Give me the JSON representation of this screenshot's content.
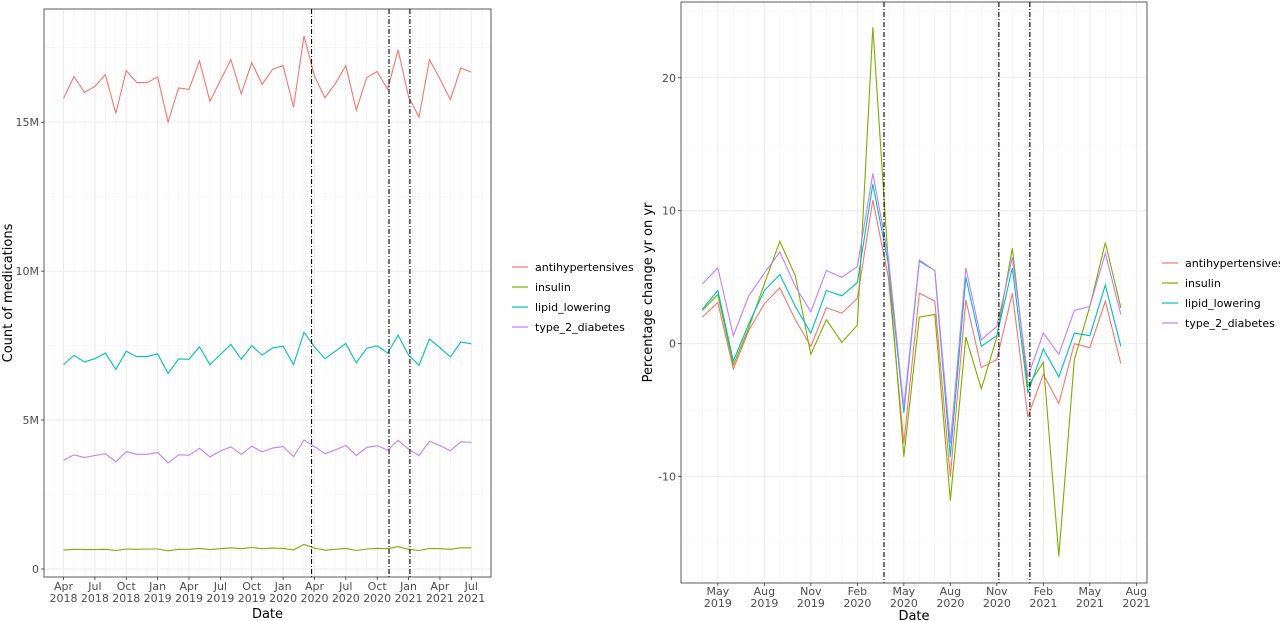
{
  "chart_data": [
    {
      "type": "line",
      "xlabel": "Date",
      "ylabel": "Count of medications",
      "x_type": "date",
      "xlim": [
        "2018-02-05",
        "2021-08-28"
      ],
      "ylim": [
        -0.27,
        18.8
      ],
      "y_unit": "millions",
      "grid": true,
      "legend_position": "right",
      "x_ticks": [
        {
          "date": "2018-04-01",
          "label": [
            "Apr",
            "2018"
          ]
        },
        {
          "date": "2018-07-01",
          "label": [
            "Jul",
            "2018"
          ]
        },
        {
          "date": "2018-10-01",
          "label": [
            "Oct",
            "2018"
          ]
        },
        {
          "date": "2019-01-01",
          "label": [
            "Jan",
            "2019"
          ]
        },
        {
          "date": "2019-04-01",
          "label": [
            "Apr",
            "2019"
          ]
        },
        {
          "date": "2019-07-01",
          "label": [
            "Jul",
            "2019"
          ]
        },
        {
          "date": "2019-10-01",
          "label": [
            "Oct",
            "2019"
          ]
        },
        {
          "date": "2020-01-01",
          "label": [
            "Jan",
            "2020"
          ]
        },
        {
          "date": "2020-04-01",
          "label": [
            "Apr",
            "2020"
          ]
        },
        {
          "date": "2020-07-01",
          "label": [
            "Jul",
            "2020"
          ]
        },
        {
          "date": "2020-10-01",
          "label": [
            "Oct",
            "2020"
          ]
        },
        {
          "date": "2021-01-01",
          "label": [
            "Jan",
            "2021"
          ]
        },
        {
          "date": "2021-04-01",
          "label": [
            "Apr",
            "2021"
          ]
        },
        {
          "date": "2021-07-01",
          "label": [
            "Jul",
            "2021"
          ]
        }
      ],
      "y_ticks": [
        {
          "value": 0,
          "label": "0"
        },
        {
          "value": 5,
          "label": "5M"
        },
        {
          "value": 10,
          "label": "10M"
        },
        {
          "value": 15,
          "label": "15M"
        }
      ],
      "vlines": [
        "2020-03-23",
        "2020-11-05",
        "2021-01-05"
      ],
      "x_start": "2018-04",
      "series": [
        {
          "name": "antihypertensives",
          "color": "#F8766D",
          "values": [
            15.8,
            16.53,
            16.0,
            16.2,
            16.6,
            15.3,
            16.73,
            16.33,
            16.33,
            16.52,
            15.0,
            16.15,
            16.1,
            17.06,
            15.7,
            16.4,
            17.1,
            15.95,
            17.0,
            16.27,
            16.78,
            16.9,
            15.5,
            17.9,
            16.55,
            15.82,
            16.3,
            16.9,
            15.4,
            16.5,
            16.7,
            16.1,
            17.43,
            15.85,
            15.17,
            17.1,
            16.45,
            15.76,
            16.82,
            16.68
          ]
        },
        {
          "name": "insulin",
          "color": "#7CAE00",
          "values": [
            0.63,
            0.66,
            0.65,
            0.65,
            0.66,
            0.62,
            0.67,
            0.66,
            0.67,
            0.67,
            0.61,
            0.66,
            0.66,
            0.69,
            0.65,
            0.68,
            0.71,
            0.68,
            0.72,
            0.68,
            0.7,
            0.69,
            0.64,
            0.82,
            0.7,
            0.63,
            0.66,
            0.69,
            0.62,
            0.67,
            0.69,
            0.68,
            0.75,
            0.66,
            0.62,
            0.69,
            0.68,
            0.66,
            0.71,
            0.71
          ]
        },
        {
          "name": "lipid_lowering",
          "color": "#00BFC4",
          "values": [
            6.86,
            7.17,
            6.95,
            7.06,
            7.25,
            6.7,
            7.31,
            7.13,
            7.13,
            7.22,
            6.56,
            7.05,
            7.04,
            7.46,
            6.86,
            7.2,
            7.54,
            7.04,
            7.5,
            7.18,
            7.42,
            7.48,
            6.86,
            7.94,
            7.46,
            7.06,
            7.31,
            7.57,
            6.92,
            7.41,
            7.49,
            7.25,
            7.85,
            7.18,
            6.84,
            7.72,
            7.43,
            7.12,
            7.62,
            7.56
          ]
        },
        {
          "name": "type_2_diabetes",
          "color": "#C77CFF",
          "values": [
            3.65,
            3.83,
            3.74,
            3.81,
            3.87,
            3.6,
            3.94,
            3.85,
            3.85,
            3.91,
            3.56,
            3.83,
            3.82,
            4.05,
            3.76,
            3.96,
            4.1,
            3.85,
            4.12,
            3.93,
            4.06,
            4.11,
            3.77,
            4.33,
            4.11,
            3.87,
            4.0,
            4.15,
            3.81,
            4.08,
            4.14,
            3.99,
            4.32,
            4.02,
            3.81,
            4.29,
            4.14,
            3.97,
            4.27,
            4.25
          ]
        }
      ]
    },
    {
      "type": "line",
      "xlabel": "Date",
      "ylabel": "Percentage change yr on yr",
      "x_type": "date",
      "xlim": [
        "2019-02-20",
        "2021-08-22"
      ],
      "ylim": [
        -18.0,
        25.7
      ],
      "grid": true,
      "legend_position": "right",
      "x_ticks": [
        {
          "date": "2019-05-01",
          "label": [
            "May",
            "2019"
          ]
        },
        {
          "date": "2019-08-01",
          "label": [
            "Aug",
            "2019"
          ]
        },
        {
          "date": "2019-11-01",
          "label": [
            "Nov",
            "2019"
          ]
        },
        {
          "date": "2020-02-01",
          "label": [
            "Feb",
            "2020"
          ]
        },
        {
          "date": "2020-05-01",
          "label": [
            "May",
            "2020"
          ]
        },
        {
          "date": "2020-08-01",
          "label": [
            "Aug",
            "2020"
          ]
        },
        {
          "date": "2020-11-01",
          "label": [
            "Nov",
            "2020"
          ]
        },
        {
          "date": "2021-02-01",
          "label": [
            "Feb",
            "2021"
          ]
        },
        {
          "date": "2021-05-01",
          "label": [
            "May",
            "2021"
          ]
        },
        {
          "date": "2021-08-01",
          "label": [
            "Aug",
            "2021"
          ]
        }
      ],
      "y_ticks": [
        {
          "value": -10,
          "label": "-10"
        },
        {
          "value": 0,
          "label": "0"
        },
        {
          "value": 10,
          "label": "10"
        },
        {
          "value": 20,
          "label": "20"
        }
      ],
      "vlines": [
        "2020-03-23",
        "2020-11-05",
        "2021-01-05"
      ],
      "x_start": "2019-04",
      "series": [
        {
          "name": "antihypertensives",
          "color": "#F8766D",
          "values": [
            2.0,
            3.1,
            -1.9,
            1.0,
            3.0,
            4.2,
            1.8,
            -0.2,
            2.7,
            2.3,
            3.4,
            10.8,
            5.0,
            -7.5,
            3.8,
            3.2,
            -10.0,
            3.3,
            -1.8,
            -1.2,
            3.8,
            -5.5,
            -2.3,
            -4.5,
            0.0,
            -0.3,
            3.2,
            -1.5
          ]
        },
        {
          "name": "insulin",
          "color": "#7CAE00",
          "values": [
            2.5,
            3.7,
            -1.6,
            1.2,
            4.5,
            7.7,
            5.1,
            -0.8,
            1.8,
            0.1,
            1.4,
            23.8,
            6.0,
            -8.5,
            2.0,
            2.2,
            -11.8,
            0.5,
            -3.4,
            0.5,
            7.2,
            -3.2,
            -1.4,
            -16.0,
            -1.2,
            2.8,
            7.6,
            2.7
          ]
        },
        {
          "name": "lipid_lowering",
          "color": "#00BFC4",
          "values": [
            2.6,
            4.0,
            -1.3,
            1.5,
            4.0,
            5.2,
            2.8,
            0.8,
            4.0,
            3.6,
            4.6,
            12.0,
            6.0,
            -5.2,
            6.2,
            5.5,
            -8.5,
            5.0,
            -0.2,
            0.6,
            5.7,
            -3.7,
            -0.4,
            -2.5,
            0.8,
            0.6,
            4.4,
            -0.2
          ]
        },
        {
          "name": "type_2_diabetes",
          "color": "#C77CFF",
          "values": [
            4.5,
            5.7,
            0.6,
            3.6,
            5.3,
            6.9,
            4.3,
            2.4,
            5.5,
            5.0,
            5.8,
            12.8,
            6.5,
            -4.8,
            6.3,
            5.5,
            -7.5,
            5.7,
            0.3,
            1.3,
            6.5,
            -2.5,
            0.8,
            -0.8,
            2.5,
            2.8,
            6.8,
            2.2
          ]
        }
      ]
    }
  ]
}
